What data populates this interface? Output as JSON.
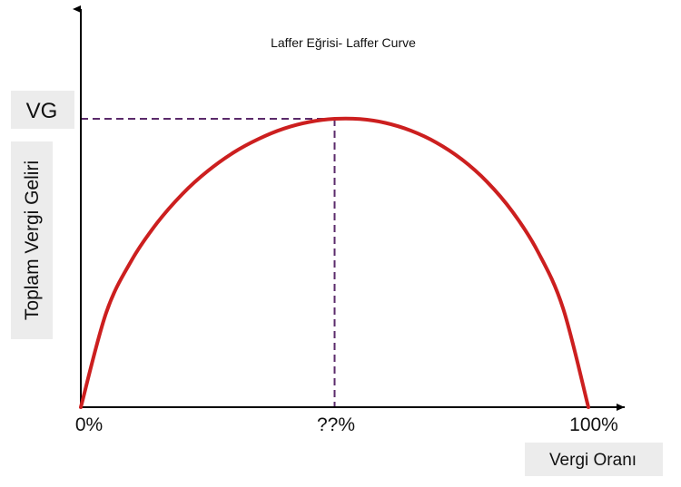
{
  "chart_data": {
    "type": "line",
    "title": "Laffer Eğrisi- Laffer Curve",
    "xlabel": "Vergi Oranı",
    "ylabel": "Toplam Vergi Geliri",
    "x_ticks": [
      "0%",
      "??%",
      "100%"
    ],
    "y_tick": "VG",
    "xlim": [
      0,
      100
    ],
    "ylim": [
      0,
      100
    ],
    "series": [
      {
        "color": "#cc1f1f",
        "x": [
          0,
          5,
          10,
          15,
          20,
          25,
          30,
          35,
          40,
          45,
          50,
          55,
          60,
          65,
          70,
          75,
          80,
          85,
          90,
          95,
          100
        ],
        "y": [
          0,
          32.8,
          50.9,
          63.8,
          73.9,
          81.9,
          88.2,
          93.0,
          96.6,
          98.9,
          100,
          99.9,
          98.6,
          95.9,
          91.8,
          86.0,
          78.2,
          67.9,
          54.1,
          34.4,
          0
        ]
      }
    ],
    "peak": {
      "x": 50,
      "y": 100
    },
    "guide_color": "#5a2a6a",
    "grid": false,
    "legend": "none"
  }
}
